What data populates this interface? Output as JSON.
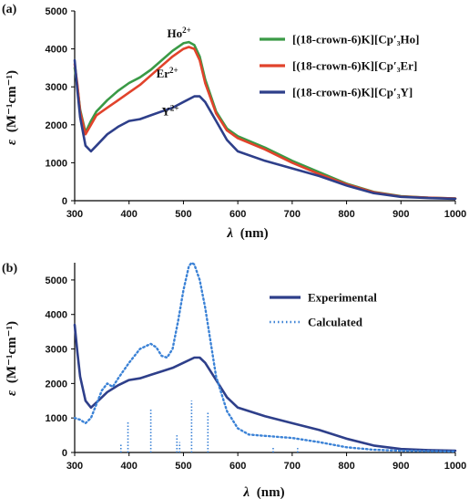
{
  "chart_data": [
    {
      "panel_label": "(a)",
      "type": "line",
      "xlabel_symbol": "λ",
      "xlabel_unit": "(nm)",
      "ylabel_symbol": "ε",
      "ylabel_unit": "(M⁻¹cm⁻¹)",
      "xlim": [
        300,
        1000
      ],
      "ylim": [
        0,
        5000
      ],
      "xticks": [
        300,
        400,
        500,
        600,
        700,
        800,
        900,
        1000
      ],
      "yticks": [
        0,
        1000,
        2000,
        3000,
        4000,
        5000
      ],
      "legend_position": "top-right",
      "series": [
        {
          "name": "[(18-crown-6)K][Cp′₃Ho]",
          "color": "#3a9a46",
          "x": [
            300,
            305,
            310,
            320,
            330,
            340,
            360,
            380,
            400,
            420,
            440,
            460,
            480,
            500,
            510,
            520,
            530,
            540,
            560,
            580,
            600,
            650,
            700,
            750,
            800,
            850,
            900,
            950,
            1000
          ],
          "y": [
            3500,
            3000,
            2400,
            1800,
            2100,
            2350,
            2650,
            2900,
            3100,
            3250,
            3450,
            3700,
            3950,
            4150,
            4180,
            4100,
            3800,
            3200,
            2350,
            1900,
            1700,
            1400,
            1050,
            750,
            450,
            230,
            120,
            80,
            60
          ]
        },
        {
          "name": "[(18-crown-6)K][Cp′₃Er]",
          "color": "#e1432b",
          "x": [
            300,
            305,
            310,
            320,
            330,
            340,
            360,
            380,
            400,
            420,
            440,
            460,
            480,
            500,
            510,
            520,
            530,
            540,
            560,
            580,
            600,
            650,
            700,
            750,
            800,
            850,
            900,
            950,
            1000
          ],
          "y": [
            3600,
            3050,
            2350,
            1750,
            2000,
            2250,
            2450,
            2650,
            2850,
            3050,
            3300,
            3550,
            3800,
            4000,
            4050,
            4000,
            3700,
            3100,
            2300,
            1850,
            1650,
            1350,
            1000,
            700,
            430,
            220,
            110,
            80,
            60
          ]
        },
        {
          "name": "[(18-crown-6)K][Cp′₃Y]",
          "color": "#2e3f8a",
          "x": [
            300,
            305,
            310,
            320,
            330,
            340,
            360,
            380,
            400,
            420,
            440,
            460,
            480,
            500,
            520,
            530,
            540,
            560,
            580,
            600,
            650,
            700,
            750,
            800,
            850,
            900,
            950,
            1000
          ],
          "y": [
            3700,
            2900,
            2200,
            1450,
            1300,
            1450,
            1750,
            1950,
            2100,
            2150,
            2250,
            2350,
            2450,
            2600,
            2750,
            2750,
            2600,
            2100,
            1600,
            1300,
            1050,
            850,
            650,
            400,
            200,
            100,
            70,
            50
          ]
        }
      ],
      "annotations": [
        {
          "text_main": "Ho",
          "text_sup": "2+",
          "x": 470,
          "y": 4300
        },
        {
          "text_main": "Er",
          "text_sup": "2+",
          "x": 450,
          "y": 3250
        },
        {
          "text_main": "Y",
          "text_sup": "2+",
          "x": 460,
          "y": 2250
        }
      ]
    },
    {
      "panel_label": "(b)",
      "type": "line",
      "xlabel_symbol": "λ",
      "xlabel_unit": "(nm)",
      "ylabel_symbol": "ε",
      "ylabel_unit": "(M⁻¹cm⁻¹)",
      "xlim": [
        300,
        1000
      ],
      "ylim": [
        0,
        5500
      ],
      "xticks": [
        300,
        400,
        500,
        600,
        700,
        800,
        900,
        1000
      ],
      "yticks": [
        0,
        1000,
        2000,
        3000,
        4000,
        5000
      ],
      "legend_position": "top-right",
      "series": [
        {
          "name": "Experimental",
          "color": "#2e3f8a",
          "style": "solid",
          "x": [
            300,
            305,
            310,
            320,
            330,
            340,
            360,
            380,
            400,
            420,
            440,
            460,
            480,
            500,
            520,
            530,
            540,
            560,
            580,
            600,
            650,
            700,
            750,
            800,
            850,
            900,
            950,
            1000
          ],
          "y": [
            3700,
            2900,
            2200,
            1500,
            1300,
            1450,
            1750,
            1950,
            2100,
            2150,
            2250,
            2350,
            2450,
            2600,
            2750,
            2750,
            2600,
            2100,
            1600,
            1300,
            1050,
            850,
            650,
            400,
            200,
            100,
            70,
            50
          ]
        },
        {
          "name": "Calculated",
          "color": "#3b82d6",
          "style": "dotted",
          "x": [
            300,
            310,
            320,
            330,
            340,
            350,
            360,
            370,
            380,
            400,
            420,
            440,
            450,
            460,
            470,
            480,
            490,
            500,
            510,
            515,
            520,
            530,
            540,
            550,
            560,
            580,
            600,
            620,
            650,
            700,
            750,
            800,
            850,
            900,
            950,
            1000
          ],
          "y": [
            1000,
            950,
            850,
            1000,
            1400,
            1800,
            2000,
            1900,
            2150,
            2600,
            3000,
            3150,
            3050,
            2800,
            2750,
            3000,
            3800,
            4700,
            5400,
            5500,
            5450,
            5000,
            4200,
            3200,
            2200,
            1200,
            700,
            520,
            480,
            420,
            300,
            150,
            80,
            50,
            40,
            30
          ]
        }
      ],
      "sticks": [
        {
          "x": 385,
          "y": 250
        },
        {
          "x": 398,
          "y": 900
        },
        {
          "x": 440,
          "y": 1250
        },
        {
          "x": 488,
          "y": 500
        },
        {
          "x": 493,
          "y": 300
        },
        {
          "x": 515,
          "y": 1500
        },
        {
          "x": 545,
          "y": 1150
        },
        {
          "x": 665,
          "y": 150
        },
        {
          "x": 710,
          "y": 130
        }
      ],
      "stick_color": "#3b82d6"
    }
  ]
}
